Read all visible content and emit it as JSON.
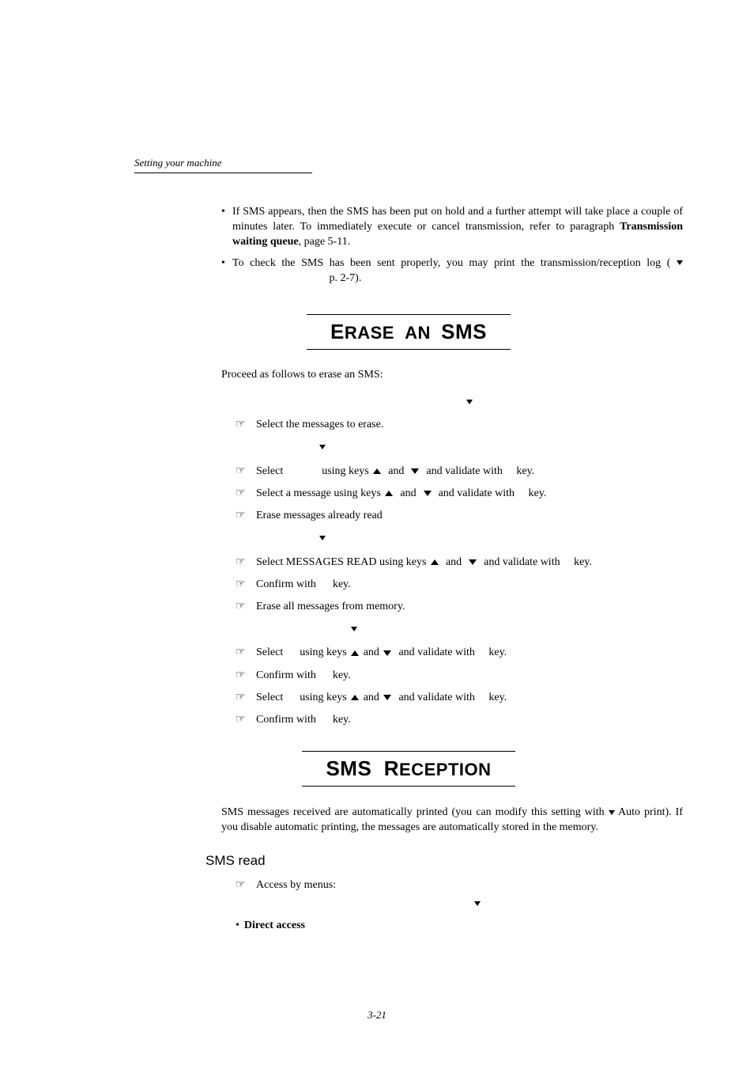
{
  "header": "Setting your machine",
  "bullets": [
    {
      "pre": "If SMS appears, then the SMS has been put on hold and a further attempt will take place a couple of minutes later. To immediately execute or cancel transmission, refer to paragraph ",
      "bold": "Transmission waiting queue",
      "post": ", page 5-11."
    },
    {
      "pre": "To check the SMS has been sent properly, you may print the transmission/reception log ( ",
      "down": true,
      "mid": "",
      "post": " p. 2-7)."
    }
  ],
  "sections": {
    "erase": {
      "caps": [
        "E",
        "SMS"
      ],
      "rest": [
        "RASE  AN  ",
        ""
      ]
    },
    "reception": {
      "caps": [
        "SMS  R"
      ],
      "rest": [
        "ECEPTION"
      ]
    }
  },
  "erase": {
    "intro": "Proceed as follows to erase an SMS:",
    "down1": true,
    "steps": [
      "Select the messages to erase.",
      "",
      {
        "t": "Select",
        "upDown": true,
        "tail": "and validate with     key.",
        "pre": "              using keys "
      },
      {
        "t": "Select a message  using keys ",
        "upDown": true,
        "tail": "and validate with     key."
      },
      "Erase messages already read",
      "",
      {
        "t": "Select MESSAGES READ using keys ",
        "upDown": true,
        "tail": "and validate with     key."
      },
      "Confirm with      key.",
      "Erase all messages from memory.",
      "",
      {
        "t": "Select      using keys ",
        "upDown": true,
        "tail": "and validate with     key.",
        "tight": true
      },
      "Confirm with      key.",
      {
        "t": "Select      using keys ",
        "upDown": true,
        "tail": "and validate with     key.",
        "tight": true
      },
      "Confirm with      key."
    ]
  },
  "reception": {
    "para_pre": "SMS messages received are automatically printed (you can modify this setting with ",
    "para_post": " Auto print). If you disable automatic printing, the messages are automatically stored in the memory.",
    "subhead": "SMS read",
    "access": "Access by menus:",
    "direct_mark": "•",
    "direct": "Direct access"
  },
  "page_num": "3-21"
}
